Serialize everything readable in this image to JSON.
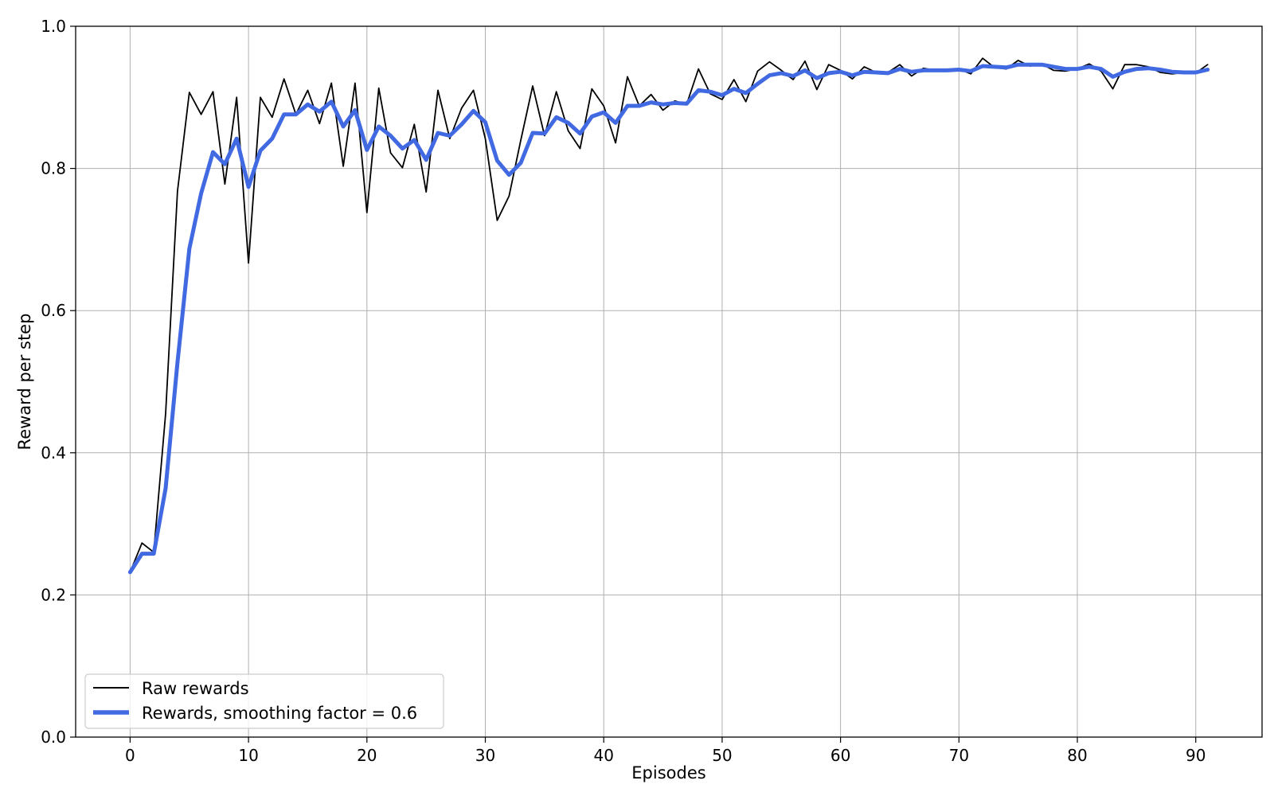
{
  "chart_data": {
    "type": "line",
    "title": "",
    "xlabel": "Episodes",
    "ylabel": "Reward per step",
    "xlim": [
      -4.6,
      95.6
    ],
    "ylim": [
      0.0,
      1.0
    ],
    "xticks": [
      0,
      10,
      20,
      30,
      40,
      50,
      60,
      70,
      80,
      90
    ],
    "yticks": [
      0.0,
      0.2,
      0.4,
      0.6,
      0.8,
      1.0
    ],
    "xtick_labels": [
      "0",
      "10",
      "20",
      "30",
      "40",
      "50",
      "60",
      "70",
      "80",
      "90"
    ],
    "ytick_labels": [
      "0.0",
      "0.2",
      "0.4",
      "0.6",
      "0.8",
      "1.0"
    ],
    "grid": true,
    "legend_position": "lower-left",
    "x": [
      0,
      1,
      2,
      3,
      4,
      5,
      6,
      7,
      8,
      9,
      10,
      11,
      12,
      13,
      14,
      15,
      16,
      17,
      18,
      19,
      20,
      21,
      22,
      23,
      24,
      25,
      26,
      27,
      28,
      29,
      30,
      31,
      32,
      33,
      34,
      35,
      36,
      37,
      38,
      39,
      40,
      41,
      42,
      43,
      44,
      45,
      46,
      47,
      48,
      49,
      50,
      51,
      52,
      53,
      54,
      55,
      56,
      57,
      58,
      59,
      60,
      61,
      62,
      63,
      64,
      65,
      66,
      67,
      68,
      69,
      70,
      71,
      72,
      73,
      74,
      75,
      76,
      77,
      78,
      79,
      80,
      81,
      82,
      83,
      84,
      85,
      86,
      87,
      88,
      89,
      90,
      91
    ],
    "series": [
      {
        "name": "Raw rewards",
        "color": "#000000",
        "values": [
          0.232,
          0.273,
          0.26,
          0.455,
          0.768,
          0.907,
          0.876,
          0.908,
          0.778,
          0.9,
          0.667,
          0.9,
          0.872,
          0.926,
          0.876,
          0.91,
          0.863,
          0.92,
          0.803,
          0.92,
          0.738,
          0.913,
          0.822,
          0.801,
          0.862,
          0.767,
          0.91,
          0.842,
          0.885,
          0.91,
          0.842,
          0.727,
          0.761,
          0.84,
          0.916,
          0.846,
          0.908,
          0.853,
          0.828,
          0.912,
          0.888,
          0.836,
          0.929,
          0.888,
          0.904,
          0.882,
          0.895,
          0.89,
          0.94,
          0.905,
          0.897,
          0.925,
          0.894,
          0.937,
          0.95,
          0.938,
          0.925,
          0.951,
          0.911,
          0.946,
          0.938,
          0.926,
          0.943,
          0.935,
          0.935,
          0.946,
          0.93,
          0.941,
          0.938,
          0.937,
          0.94,
          0.933,
          0.955,
          0.942,
          0.94,
          0.952,
          0.944,
          0.947,
          0.938,
          0.937,
          0.94,
          0.947,
          0.937,
          0.912,
          0.946,
          0.946,
          0.943,
          0.935,
          0.933,
          0.935,
          0.934,
          0.946
        ]
      },
      {
        "name": "Rewards, smoothing factor = 0.6",
        "color": "#4169e1",
        "values": [
          0.232,
          0.258,
          0.258,
          0.35,
          0.527,
          0.687,
          0.765,
          0.823,
          0.806,
          0.842,
          0.774,
          0.825,
          0.842,
          0.876,
          0.876,
          0.89,
          0.88,
          0.894,
          0.859,
          0.882,
          0.826,
          0.859,
          0.846,
          0.828,
          0.84,
          0.812,
          0.85,
          0.846,
          0.862,
          0.881,
          0.865,
          0.811,
          0.791,
          0.808,
          0.85,
          0.849,
          0.872,
          0.864,
          0.849,
          0.873,
          0.879,
          0.864,
          0.888,
          0.888,
          0.893,
          0.89,
          0.892,
          0.891,
          0.91,
          0.908,
          0.903,
          0.912,
          0.906,
          0.919,
          0.931,
          0.934,
          0.93,
          0.938,
          0.927,
          0.934,
          0.936,
          0.931,
          0.936,
          0.935,
          0.934,
          0.94,
          0.936,
          0.938,
          0.938,
          0.938,
          0.939,
          0.937,
          0.944,
          0.943,
          0.942,
          0.946,
          0.946,
          0.946,
          0.943,
          0.94,
          0.94,
          0.943,
          0.94,
          0.929,
          0.936,
          0.94,
          0.941,
          0.939,
          0.936,
          0.935,
          0.935,
          0.939
        ]
      }
    ]
  }
}
